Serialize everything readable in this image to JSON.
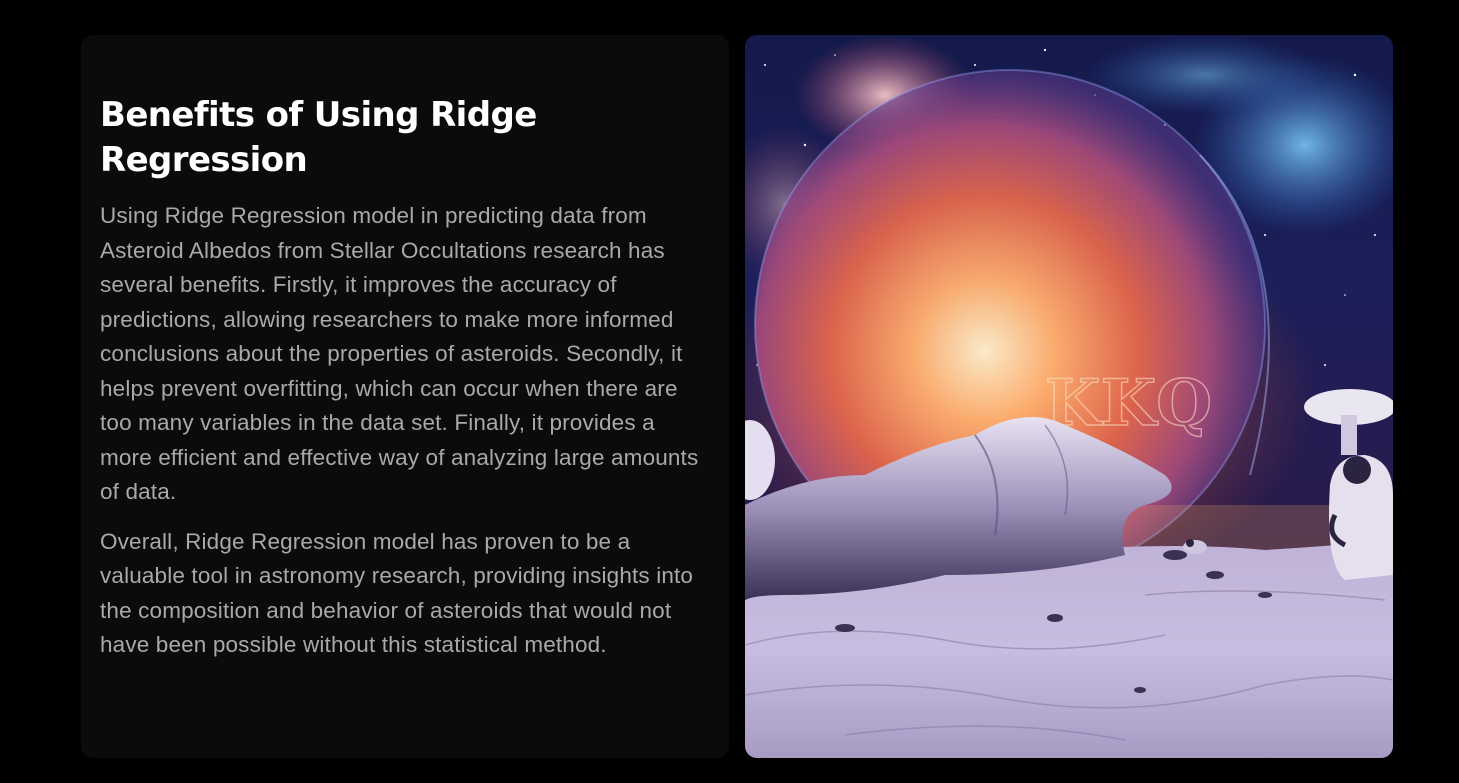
{
  "section": {
    "title": "Benefits of Using Ridge Regression",
    "paragraphs": [
      "Using Ridge Regression model in predicting data from Asteroid Albedos from Stellar Occultations research has several benefits. Firstly, it improves the accuracy of predictions, allowing researchers to make more informed conclusions about the properties of asteroids. Secondly, it helps prevent overfitting, which can occur when there are too many variables in the data set. Finally, it provides a more efficient and effective way of analyzing large amounts of data.",
      "Overall, Ridge Regression model has proven to be a valuable tool in astronomy research, providing insights into the composition and behavior of asteroids that would not have been possible without this statistical method."
    ]
  },
  "illustration": {
    "description_icon": "space-landscape-illustration",
    "watermark": "KKQ"
  },
  "colors": {
    "page_background": "#000000",
    "card_background": "#0b0b0b",
    "title_color": "#ffffff",
    "body_text_color": "#a9a9a9"
  }
}
